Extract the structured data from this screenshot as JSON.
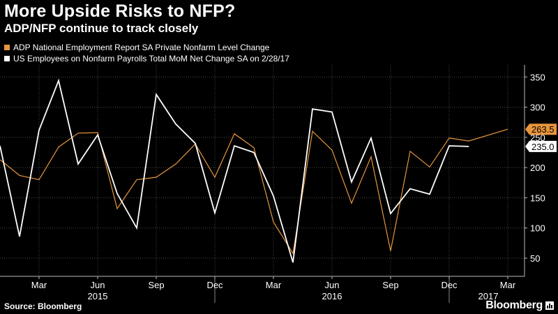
{
  "header": {
    "title": "More Upside Risks to NFP?",
    "subtitle": "ADP/NFP continue to track closely"
  },
  "footer": {
    "source": "Source: Bloomberg",
    "brand": "Bloomberg"
  },
  "colors": {
    "adp": "#e8953c",
    "nfp": "#ffffff",
    "grid": "#4a4a4a"
  },
  "chart_data": {
    "type": "line",
    "ylim": [
      20,
      370
    ],
    "yticks": [
      50,
      100,
      150,
      200,
      250,
      300,
      350
    ],
    "x_months": [
      "2015-01",
      "2015-02",
      "2015-03",
      "2015-04",
      "2015-05",
      "2015-06",
      "2015-07",
      "2015-08",
      "2015-09",
      "2015-10",
      "2015-11",
      "2015-12",
      "2016-01",
      "2016-02",
      "2016-03",
      "2016-04",
      "2016-05",
      "2016-06",
      "2016-07",
      "2016-08",
      "2016-09",
      "2016-10",
      "2016-11",
      "2016-12",
      "2017-01",
      "2017-02",
      "2017-03"
    ],
    "xlim": [
      "2015-01",
      "2017-03"
    ],
    "x_tick_labels": [
      {
        "month": "2015-03",
        "label": "Mar"
      },
      {
        "month": "2015-06",
        "label": "Jun"
      },
      {
        "month": "2015-09",
        "label": "Sep"
      },
      {
        "month": "2015-12",
        "label": "Dec"
      },
      {
        "month": "2016-03",
        "label": "Mar"
      },
      {
        "month": "2016-06",
        "label": "Jun"
      },
      {
        "month": "2016-09",
        "label": "Sep"
      },
      {
        "month": "2016-12",
        "label": "Dec"
      },
      {
        "month": "2017-03",
        "label": "Mar"
      }
    ],
    "year_labels": [
      {
        "month": "2015-06",
        "label": "2015"
      },
      {
        "month": "2016-06",
        "label": "2016"
      },
      {
        "month": "2017-02",
        "label": "2017"
      }
    ],
    "year_dividers": [
      "2015-12",
      "2016-12"
    ],
    "series": [
      {
        "name": "ADP National Employment Report SA Private Nonfarm Level Change",
        "key": "adp",
        "values": [
          213,
          187,
          180,
          234,
          257,
          258,
          132,
          180,
          184,
          206,
          239,
          184,
          256,
          233,
          110,
          58,
          260,
          229,
          141,
          218,
          62,
          227,
          201,
          249,
          244,
          null
        ],
        "months": [
          "2015-01",
          "2015-02",
          "2015-03",
          "2015-04",
          "2015-05",
          "2015-06",
          "2015-07",
          "2015-08",
          "2015-09",
          "2015-10",
          "2015-11",
          "2015-12",
          "2016-01",
          "2016-02",
          "2016-03",
          "2016-04",
          "2016-05",
          "2016-06",
          "2016-07",
          "2016-08",
          "2016-09",
          "2016-10",
          "2016-11",
          "2016-12",
          "2017-01",
          "2017-02"
        ],
        "last_value_label": "263.5",
        "last_value": 263.5,
        "last_month": "2017-03"
      },
      {
        "name": "US Employees on Nonfarm Payrolls Total MoM Net Change SA  on 2/28/17",
        "key": "nfp",
        "values": [
          236,
          86,
          262,
          344,
          206,
          254,
          157,
          100,
          321,
          272,
          240,
          125,
          236,
          225,
          153,
          43,
          297,
          292,
          176,
          249,
          124,
          165,
          156,
          236,
          235
        ],
        "months": [
          "2015-01",
          "2015-02",
          "2015-03",
          "2015-04",
          "2015-05",
          "2015-06",
          "2015-07",
          "2015-08",
          "2015-09",
          "2015-10",
          "2015-11",
          "2015-12",
          "2016-01",
          "2016-02",
          "2016-03",
          "2016-04",
          "2016-05",
          "2016-06",
          "2016-07",
          "2016-08",
          "2016-09",
          "2016-10",
          "2016-11",
          "2016-12",
          "2017-01"
        ],
        "last_value_label": "235.0",
        "last_value": 235.0
      }
    ]
  }
}
